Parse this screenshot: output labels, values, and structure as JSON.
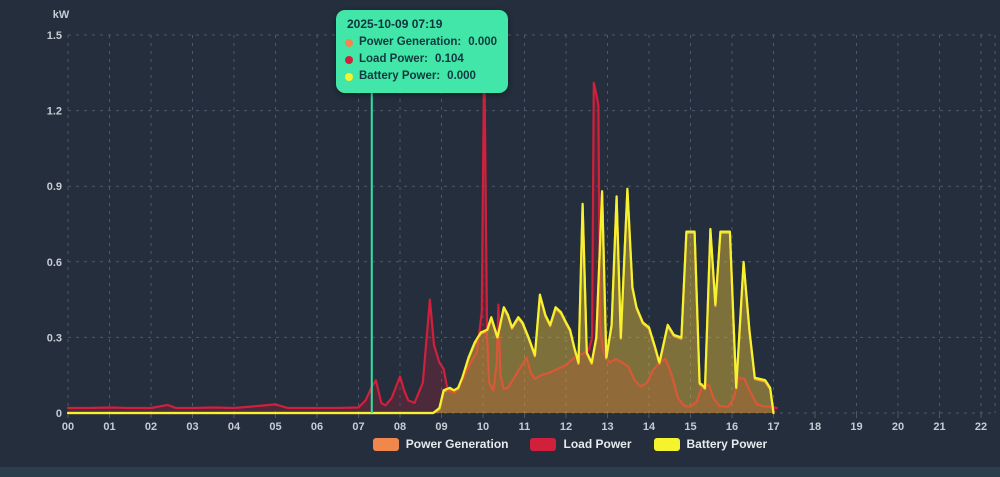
{
  "colors": {
    "background": "#242E3C",
    "bottom_bar": "#2B3E4B",
    "grid": "#4E586A",
    "axis_text": "#C6CCD4"
  },
  "tooltip": {
    "title": "2025-10-09 07:19",
    "bg": "#41E6A8",
    "rows": [
      {
        "label": "Power Generation:",
        "value": "0.000",
        "dot_color": "#F0884D"
      },
      {
        "label": "Load Power:",
        "value": "0.104",
        "dot_color": "#D0203C"
      },
      {
        "label": "Battery Power:",
        "value": "0.000",
        "dot_color": "#F5F22E"
      }
    ]
  },
  "legend": {
    "items": [
      {
        "label": "Power Generation",
        "color": "#F0884D"
      },
      {
        "label": "Load Power",
        "color": "#D0203C"
      },
      {
        "label": "Battery Power",
        "color": "#F5F22E"
      }
    ]
  },
  "chart_data": {
    "type": "line",
    "title": "",
    "y_unit": "kW",
    "xlabel": "",
    "ylabel": "kW",
    "x_ticks": [
      "00",
      "01",
      "02",
      "03",
      "04",
      "05",
      "06",
      "07",
      "08",
      "09",
      "10",
      "11",
      "12",
      "13",
      "14",
      "15",
      "16",
      "17",
      "18",
      "19",
      "20",
      "21",
      "22"
    ],
    "y_ticks": [
      "0",
      "0.3",
      "0.6",
      "0.9",
      "1.2",
      "1.5"
    ],
    "x_range_hours": [
      0,
      22.34
    ],
    "ylim": [
      0,
      1.5
    ],
    "grid": "dashed",
    "legend_position": "bottom-center",
    "cursor": {
      "x_hours": 7.32,
      "time": "07:19",
      "color": "#2BE3A4"
    },
    "series": [
      {
        "name": "Power Generation",
        "color": "#F0884D",
        "fill_opacity": 0.22,
        "points": [
          [
            0,
            0
          ],
          [
            3,
            0
          ],
          [
            6,
            0
          ],
          [
            7,
            0
          ],
          [
            8,
            0
          ],
          [
            8.8,
            0
          ],
          [
            8.95,
            0.015
          ],
          [
            9.05,
            0.085
          ],
          [
            9.2,
            0.095
          ],
          [
            9.3,
            0.085
          ],
          [
            9.4,
            0.095
          ],
          [
            9.5,
            0.135
          ],
          [
            9.65,
            0.215
          ],
          [
            9.8,
            0.275
          ],
          [
            9.95,
            0.315
          ],
          [
            10.1,
            0.325
          ],
          [
            10.2,
            0.375
          ],
          [
            10.35,
            0.295
          ],
          [
            10.5,
            0.415
          ],
          [
            10.6,
            0.385
          ],
          [
            10.7,
            0.335
          ],
          [
            10.85,
            0.375
          ],
          [
            10.95,
            0.355
          ],
          [
            11.1,
            0.295
          ],
          [
            11.25,
            0.225
          ],
          [
            11.37,
            0.465
          ],
          [
            11.5,
            0.385
          ],
          [
            11.62,
            0.345
          ],
          [
            11.75,
            0.415
          ],
          [
            11.88,
            0.395
          ],
          [
            12,
            0.355
          ],
          [
            12.1,
            0.325
          ],
          [
            12.2,
            0.255
          ],
          [
            12.3,
            0.195
          ],
          [
            12.4,
            0.825
          ],
          [
            12.5,
            0.235
          ],
          [
            12.62,
            0.195
          ],
          [
            12.73,
            0.295
          ],
          [
            12.87,
            0.875
          ],
          [
            12.97,
            0.215
          ],
          [
            13.1,
            0.345
          ],
          [
            13.22,
            0.855
          ],
          [
            13.32,
            0.295
          ],
          [
            13.48,
            0.885
          ],
          [
            13.6,
            0.495
          ],
          [
            13.7,
            0.415
          ],
          [
            13.85,
            0.355
          ],
          [
            14,
            0.335
          ],
          [
            14.15,
            0.255
          ],
          [
            14.25,
            0.195
          ],
          [
            14.45,
            0.345
          ],
          [
            14.6,
            0.305
          ],
          [
            14.78,
            0.295
          ],
          [
            14.9,
            0.715
          ],
          [
            15.1,
            0.715
          ],
          [
            15.22,
            0.115
          ],
          [
            15.35,
            0.095
          ],
          [
            15.48,
            0.725
          ],
          [
            15.6,
            0.425
          ],
          [
            15.72,
            0.715
          ],
          [
            15.95,
            0.715
          ],
          [
            16.1,
            0.095
          ],
          [
            16.28,
            0.595
          ],
          [
            16.42,
            0.325
          ],
          [
            16.55,
            0.135
          ],
          [
            16.8,
            0.125
          ],
          [
            16.92,
            0.095
          ],
          [
            17,
            0
          ]
        ]
      },
      {
        "name": "Load Power",
        "color": "#D0203C",
        "fill_opacity": 0.22,
        "points": [
          [
            0,
            0.02
          ],
          [
            0.5,
            0.02
          ],
          [
            1,
            0.022
          ],
          [
            1.5,
            0.02
          ],
          [
            2,
            0.02
          ],
          [
            2.4,
            0.032
          ],
          [
            2.6,
            0.02
          ],
          [
            3,
            0.02
          ],
          [
            3.5,
            0.022
          ],
          [
            4,
            0.02
          ],
          [
            4.6,
            0.028
          ],
          [
            5,
            0.034
          ],
          [
            5.3,
            0.02
          ],
          [
            6,
            0.02
          ],
          [
            6.5,
            0.02
          ],
          [
            7,
            0.022
          ],
          [
            7.17,
            0.05
          ],
          [
            7.32,
            0.104
          ],
          [
            7.42,
            0.13
          ],
          [
            7.55,
            0.04
          ],
          [
            7.65,
            0.03
          ],
          [
            7.8,
            0.06
          ],
          [
            8,
            0.145
          ],
          [
            8.1,
            0.09
          ],
          [
            8.2,
            0.05
          ],
          [
            8.35,
            0.04
          ],
          [
            8.55,
            0.12
          ],
          [
            8.72,
            0.45
          ],
          [
            8.82,
            0.27
          ],
          [
            8.95,
            0.2
          ],
          [
            9.05,
            0.175
          ],
          [
            9.15,
            0.09
          ],
          [
            9.33,
            0.08
          ],
          [
            9.5,
            0.13
          ],
          [
            9.7,
            0.2
          ],
          [
            9.85,
            0.24
          ],
          [
            9.97,
            0.4
          ],
          [
            10.03,
            1.45
          ],
          [
            10.1,
            0.3
          ],
          [
            10.15,
            0.12
          ],
          [
            10.25,
            0.09
          ],
          [
            10.33,
            0.2
          ],
          [
            10.37,
            0.43
          ],
          [
            10.42,
            0.15
          ],
          [
            10.5,
            0.095
          ],
          [
            10.6,
            0.1
          ],
          [
            10.75,
            0.14
          ],
          [
            10.9,
            0.18
          ],
          [
            11.05,
            0.22
          ],
          [
            11.15,
            0.16
          ],
          [
            11.25,
            0.135
          ],
          [
            11.4,
            0.15
          ],
          [
            11.6,
            0.16
          ],
          [
            11.8,
            0.175
          ],
          [
            12,
            0.19
          ],
          [
            12.2,
            0.22
          ],
          [
            12.4,
            0.235
          ],
          [
            12.55,
            0.25
          ],
          [
            12.63,
            0.3
          ],
          [
            12.67,
            1.31
          ],
          [
            12.75,
            1.25
          ],
          [
            12.78,
            1.22
          ],
          [
            12.82,
            0.35
          ],
          [
            12.88,
            0.26
          ],
          [
            12.97,
            0.22
          ],
          [
            13.05,
            0.2
          ],
          [
            13.2,
            0.215
          ],
          [
            13.35,
            0.2
          ],
          [
            13.5,
            0.185
          ],
          [
            13.65,
            0.13
          ],
          [
            13.8,
            0.105
          ],
          [
            13.95,
            0.12
          ],
          [
            14.1,
            0.17
          ],
          [
            14.25,
            0.2
          ],
          [
            14.4,
            0.215
          ],
          [
            14.55,
            0.15
          ],
          [
            14.7,
            0.06
          ],
          [
            14.85,
            0.028
          ],
          [
            15,
            0.025
          ],
          [
            15.15,
            0.045
          ],
          [
            15.3,
            0.115
          ],
          [
            15.45,
            0.11
          ],
          [
            15.55,
            0.06
          ],
          [
            15.7,
            0.027
          ],
          [
            15.9,
            0.025
          ],
          [
            16.05,
            0.06
          ],
          [
            16.15,
            0.14
          ],
          [
            16.3,
            0.135
          ],
          [
            16.45,
            0.08
          ],
          [
            16.6,
            0.035
          ],
          [
            16.75,
            0.027
          ],
          [
            16.95,
            0.025
          ],
          [
            17.08,
            0.02
          ]
        ]
      },
      {
        "name": "Battery Power",
        "color": "#F5F22E",
        "fill_opacity": 0.27,
        "points": [
          [
            0,
            0
          ],
          [
            3,
            0
          ],
          [
            6,
            0
          ],
          [
            7,
            0
          ],
          [
            8,
            0
          ],
          [
            8.8,
            0
          ],
          [
            8.95,
            0.02
          ],
          [
            9.05,
            0.09
          ],
          [
            9.2,
            0.1
          ],
          [
            9.3,
            0.09
          ],
          [
            9.4,
            0.1
          ],
          [
            9.5,
            0.14
          ],
          [
            9.65,
            0.22
          ],
          [
            9.8,
            0.28
          ],
          [
            9.95,
            0.32
          ],
          [
            10.1,
            0.33
          ],
          [
            10.2,
            0.38
          ],
          [
            10.35,
            0.3
          ],
          [
            10.5,
            0.42
          ],
          [
            10.6,
            0.39
          ],
          [
            10.7,
            0.34
          ],
          [
            10.85,
            0.38
          ],
          [
            10.95,
            0.36
          ],
          [
            11.1,
            0.3
          ],
          [
            11.25,
            0.23
          ],
          [
            11.37,
            0.47
          ],
          [
            11.5,
            0.39
          ],
          [
            11.62,
            0.35
          ],
          [
            11.75,
            0.42
          ],
          [
            11.88,
            0.4
          ],
          [
            12,
            0.36
          ],
          [
            12.1,
            0.33
          ],
          [
            12.2,
            0.26
          ],
          [
            12.3,
            0.2
          ],
          [
            12.4,
            0.83
          ],
          [
            12.5,
            0.24
          ],
          [
            12.62,
            0.2
          ],
          [
            12.73,
            0.3
          ],
          [
            12.87,
            0.88
          ],
          [
            12.97,
            0.22
          ],
          [
            13.1,
            0.35
          ],
          [
            13.22,
            0.86
          ],
          [
            13.32,
            0.3
          ],
          [
            13.48,
            0.89
          ],
          [
            13.6,
            0.5
          ],
          [
            13.7,
            0.42
          ],
          [
            13.85,
            0.36
          ],
          [
            14,
            0.34
          ],
          [
            14.15,
            0.26
          ],
          [
            14.25,
            0.2
          ],
          [
            14.45,
            0.35
          ],
          [
            14.6,
            0.31
          ],
          [
            14.78,
            0.3
          ],
          [
            14.9,
            0.72
          ],
          [
            15.1,
            0.72
          ],
          [
            15.22,
            0.12
          ],
          [
            15.35,
            0.1
          ],
          [
            15.48,
            0.73
          ],
          [
            15.6,
            0.43
          ],
          [
            15.72,
            0.72
          ],
          [
            15.95,
            0.72
          ],
          [
            16.1,
            0.1
          ],
          [
            16.28,
            0.6
          ],
          [
            16.42,
            0.33
          ],
          [
            16.55,
            0.14
          ],
          [
            16.8,
            0.13
          ],
          [
            16.92,
            0.1
          ],
          [
            17,
            0
          ]
        ]
      }
    ]
  }
}
